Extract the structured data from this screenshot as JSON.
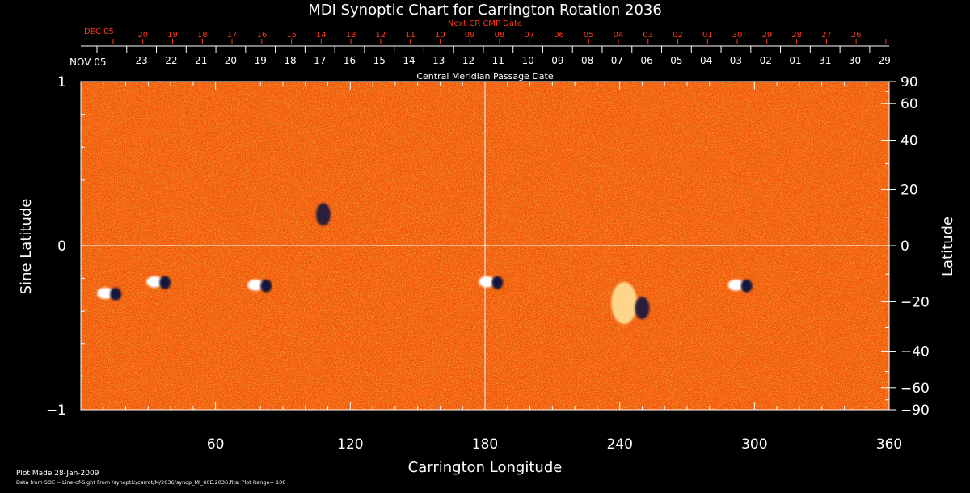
{
  "chart_data": {
    "type": "heatmap",
    "title": "MDI Synoptic Chart for Carrington Rotation 2036",
    "xlabel": "Carrington Longitude",
    "ylabel_left": "Sine Latitude",
    "ylabel_right": "Latitude",
    "xlim": [
      0,
      360
    ],
    "ylim": [
      -1,
      1
    ],
    "x_ticks": [
      {
        "v": 60,
        "label": "60"
      },
      {
        "v": 120,
        "label": "120"
      },
      {
        "v": 180,
        "label": "180"
      },
      {
        "v": 240,
        "label": "240"
      },
      {
        "v": 300,
        "label": "300"
      },
      {
        "v": 360,
        "label": "360"
      }
    ],
    "y_left_ticks": [
      {
        "v": 1,
        "label": "1"
      },
      {
        "v": 0,
        "label": "0"
      },
      {
        "v": -1,
        "label": "−1"
      }
    ],
    "y_right_ticks_deg": [
      {
        "v": 90,
        "label": "90"
      },
      {
        "v": 60,
        "label": "60"
      },
      {
        "v": 40,
        "label": "40"
      },
      {
        "v": 20,
        "label": "20"
      },
      {
        "v": 0,
        "label": "0"
      },
      {
        "v": -20,
        "label": "−20"
      },
      {
        "v": -40,
        "label": "−40"
      },
      {
        "v": -60,
        "label": "−60"
      },
      {
        "v": -90,
        "label": "−90"
      }
    ],
    "cmp_axis_label": "Central Meridian Passage Date",
    "cmp_start_label": "NOV 05",
    "cmp_dates": [
      "23",
      "22",
      "21",
      "20",
      "19",
      "18",
      "17",
      "16",
      "15",
      "14",
      "13",
      "12",
      "11",
      "10",
      "09",
      "08",
      "07",
      "06",
      "05",
      "04",
      "03",
      "02",
      "01",
      "31",
      "30",
      "29"
    ],
    "next_cr_axis_label": "Next CR CMP Date",
    "next_cr_start_label": "DEC 05",
    "next_cr_dates": [
      "20",
      "19",
      "18",
      "17",
      "16",
      "15",
      "14",
      "13",
      "12",
      "11",
      "10",
      "09",
      "08",
      "07",
      "06",
      "05",
      "04",
      "03",
      "02",
      "01",
      "30",
      "29",
      "28",
      "27",
      "26"
    ],
    "active_regions": [
      {
        "lon": 13,
        "sinlat": -0.29,
        "polarity": "bipolar"
      },
      {
        "lon": 35,
        "sinlat": -0.22,
        "polarity": "bipolar"
      },
      {
        "lon": 80,
        "sinlat": -0.24,
        "polarity": "bipolar"
      },
      {
        "lon": 108,
        "sinlat": 0.19,
        "polarity": "negative"
      },
      {
        "lon": 183,
        "sinlat": -0.22,
        "polarity": "bipolar"
      },
      {
        "lon": 242,
        "sinlat": -0.35,
        "polarity": "positive"
      },
      {
        "lon": 250,
        "sinlat": -0.38,
        "polarity": "negative"
      },
      {
        "lon": 294,
        "sinlat": -0.24,
        "polarity": "bipolar"
      }
    ],
    "background_color": "#ff5a10",
    "positive_color": "#ffffff",
    "negative_color": "#14143c"
  },
  "footer": {
    "plot_made": "Plot Made 28-Jan-2009",
    "data_source": "Data from SOE -- Line-of-Sight From /synoptic/carrot/M/2036/synop_Ml_60E.2036.fits; Plot Range= 100"
  }
}
